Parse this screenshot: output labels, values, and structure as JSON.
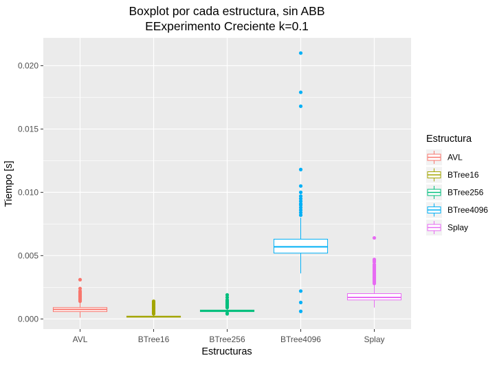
{
  "chart_data": {
    "type": "boxplot",
    "title": "Boxplot por cada estructura, sin ABB",
    "subtitle": "EExperimento Creciente k=0.1",
    "xlabel": "Estructuras",
    "ylabel": "Tiempo [s]",
    "ylim": [
      -0.0008,
      0.0222
    ],
    "y_ticks": [
      0.0,
      0.005,
      0.01,
      0.015,
      0.02
    ],
    "y_tick_labels": [
      "0.000",
      "0.005",
      "0.010",
      "0.015",
      "0.020"
    ],
    "grid": true,
    "legend": {
      "title": "Estructura",
      "position": "right"
    },
    "categories": [
      "AVL",
      "BTree16",
      "BTree256",
      "BTree4096",
      "Splay"
    ],
    "series": [
      {
        "name": "AVL",
        "color": "#F8766D",
        "box": {
          "whisker_low": 0.0001,
          "q1": 0.00058,
          "median": 0.00075,
          "q3": 0.0009,
          "whisker_high": 0.0013
        },
        "outliers": [
          0.0014,
          0.0015,
          0.0016,
          0.0017,
          0.0018,
          0.0019,
          0.002,
          0.0021,
          0.0022,
          0.0024,
          0.0031
        ]
      },
      {
        "name": "BTree16",
        "color": "#A3A500",
        "box": {
          "whisker_low": 0.0001,
          "q1": 0.00015,
          "median": 0.00018,
          "q3": 0.00022,
          "whisker_high": 0.0003
        },
        "outliers": [
          0.0004,
          0.0005,
          0.0006,
          0.0007,
          0.0008,
          0.0009,
          0.001,
          0.0011,
          0.0012,
          0.0013,
          0.0014
        ]
      },
      {
        "name": "BTree256",
        "color": "#00BF7D",
        "box": {
          "whisker_low": 0.0005,
          "q1": 0.00058,
          "median": 0.00063,
          "q3": 0.0007,
          "whisker_high": 0.0008
        },
        "outliers": [
          0.0004,
          0.00045,
          0.0009,
          0.001,
          0.0011,
          0.0012,
          0.0013,
          0.0014,
          0.0015,
          0.0017,
          0.0019
        ]
      },
      {
        "name": "BTree4096",
        "color": "#00B0F6",
        "box": {
          "whisker_low": 0.0036,
          "q1": 0.0052,
          "median": 0.0057,
          "q3": 0.0063,
          "whisker_high": 0.008
        },
        "outliers": [
          0.0006,
          0.0013,
          0.0022,
          0.0082,
          0.0084,
          0.0086,
          0.0088,
          0.009,
          0.0091,
          0.0093,
          0.0095,
          0.0097,
          0.01,
          0.0105,
          0.0118,
          0.0168,
          0.0179,
          0.021
        ]
      },
      {
        "name": "Splay",
        "color": "#E76BF3",
        "box": {
          "whisker_low": 0.0009,
          "q1": 0.0015,
          "median": 0.0017,
          "q3": 0.002,
          "whisker_high": 0.0027
        },
        "outliers": [
          0.0028,
          0.0029,
          0.003,
          0.0031,
          0.0032,
          0.0033,
          0.0034,
          0.0035,
          0.0036,
          0.0037,
          0.0038,
          0.0039,
          0.004,
          0.0041,
          0.0042,
          0.0043,
          0.0045,
          0.0046,
          0.0047,
          0.0064
        ]
      }
    ]
  }
}
